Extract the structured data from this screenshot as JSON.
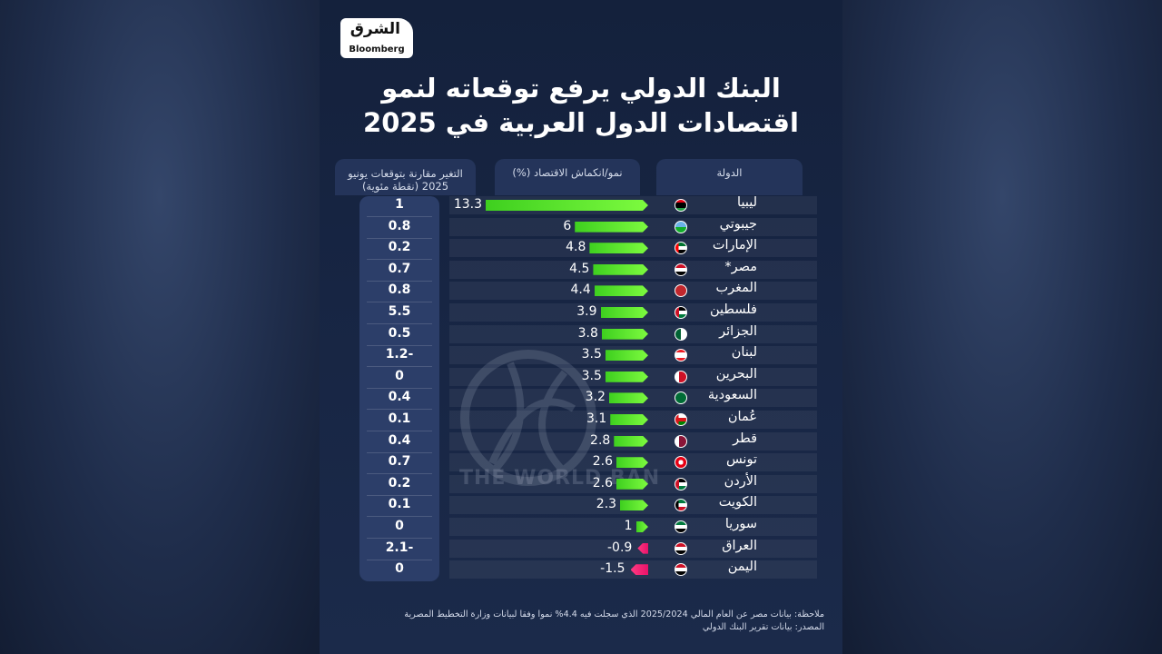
{
  "brand": {
    "arabic": "الشرق",
    "english": "Bloomberg"
  },
  "watermark_text": "THE WORLD BAN",
  "colors": {
    "positive": "#52e82a",
    "negative": "#ff2d78",
    "background": "#172543"
  },
  "chart_data": {
    "type": "bar",
    "orientation": "horizontal",
    "title": "البنك الدولي يرفع توقعاته لنمو اقتصادات الدول العربية في 2025",
    "columns": {
      "country": "الدولة",
      "growth": "نمو/انكماش الاقتصاد (%)",
      "change": "التغير مقارنة بتوقعات يونيو 2025 (نقطة مئوية)"
    },
    "xlim": [
      -1.5,
      13.3
    ],
    "categories": [
      "ليبيا",
      "جيبوتي",
      "الإمارات",
      "مصر*",
      "المغرب",
      "فلسطين",
      "الجزائر",
      "لبنان",
      "البحرين",
      "السعودية",
      "عُمان",
      "قطر",
      "تونس",
      "الأردن",
      "الكويت",
      "سوريا",
      "العراق",
      "اليمن"
    ],
    "values": [
      13.3,
      6,
      4.8,
      4.5,
      4.4,
      3.9,
      3.8,
      3.5,
      3.5,
      3.2,
      3.1,
      2.8,
      2.6,
      2.6,
      2.3,
      1,
      -0.9,
      -1.5
    ],
    "value_labels": [
      "13.3",
      "6",
      "4.8",
      "4.5",
      "4.4",
      "3.9",
      "3.8",
      "3.5",
      "3.5",
      "3.2",
      "3.1",
      "2.8",
      "2.6",
      "2.6",
      "2.3",
      "1",
      "-0.9",
      "-1.5"
    ],
    "change_values": [
      1,
      0.8,
      0.2,
      0.7,
      0.8,
      5.5,
      0.5,
      -1.2,
      0,
      0.4,
      0.1,
      0.4,
      0.7,
      0.2,
      0.1,
      0,
      -2.1,
      0
    ],
    "change_labels": [
      "1",
      "0.8",
      "0.2",
      "0.7",
      "0.8",
      "5.5",
      "0.5",
      "1.2-",
      "0",
      "0.4",
      "0.1",
      "0.4",
      "0.7",
      "0.2",
      "0.1",
      "0",
      "2.1-",
      "0"
    ],
    "flags": [
      "libya",
      "djibouti",
      "uae",
      "egypt",
      "morocco",
      "palestine",
      "algeria",
      "lebanon",
      "bahrain",
      "saudi",
      "oman",
      "qatar",
      "tunisia",
      "jordan",
      "kuwait",
      "syria",
      "iraq",
      "yemen"
    ]
  },
  "note": "ملاحظة: بيانات مصر عن العام المالي 2025/2024 الذي سجلت فيه 4.4% نموا وفقا لبيانات وزارة التخطيط المصرية",
  "source": "المصدر: بيانات تقرير البنك الدولي"
}
